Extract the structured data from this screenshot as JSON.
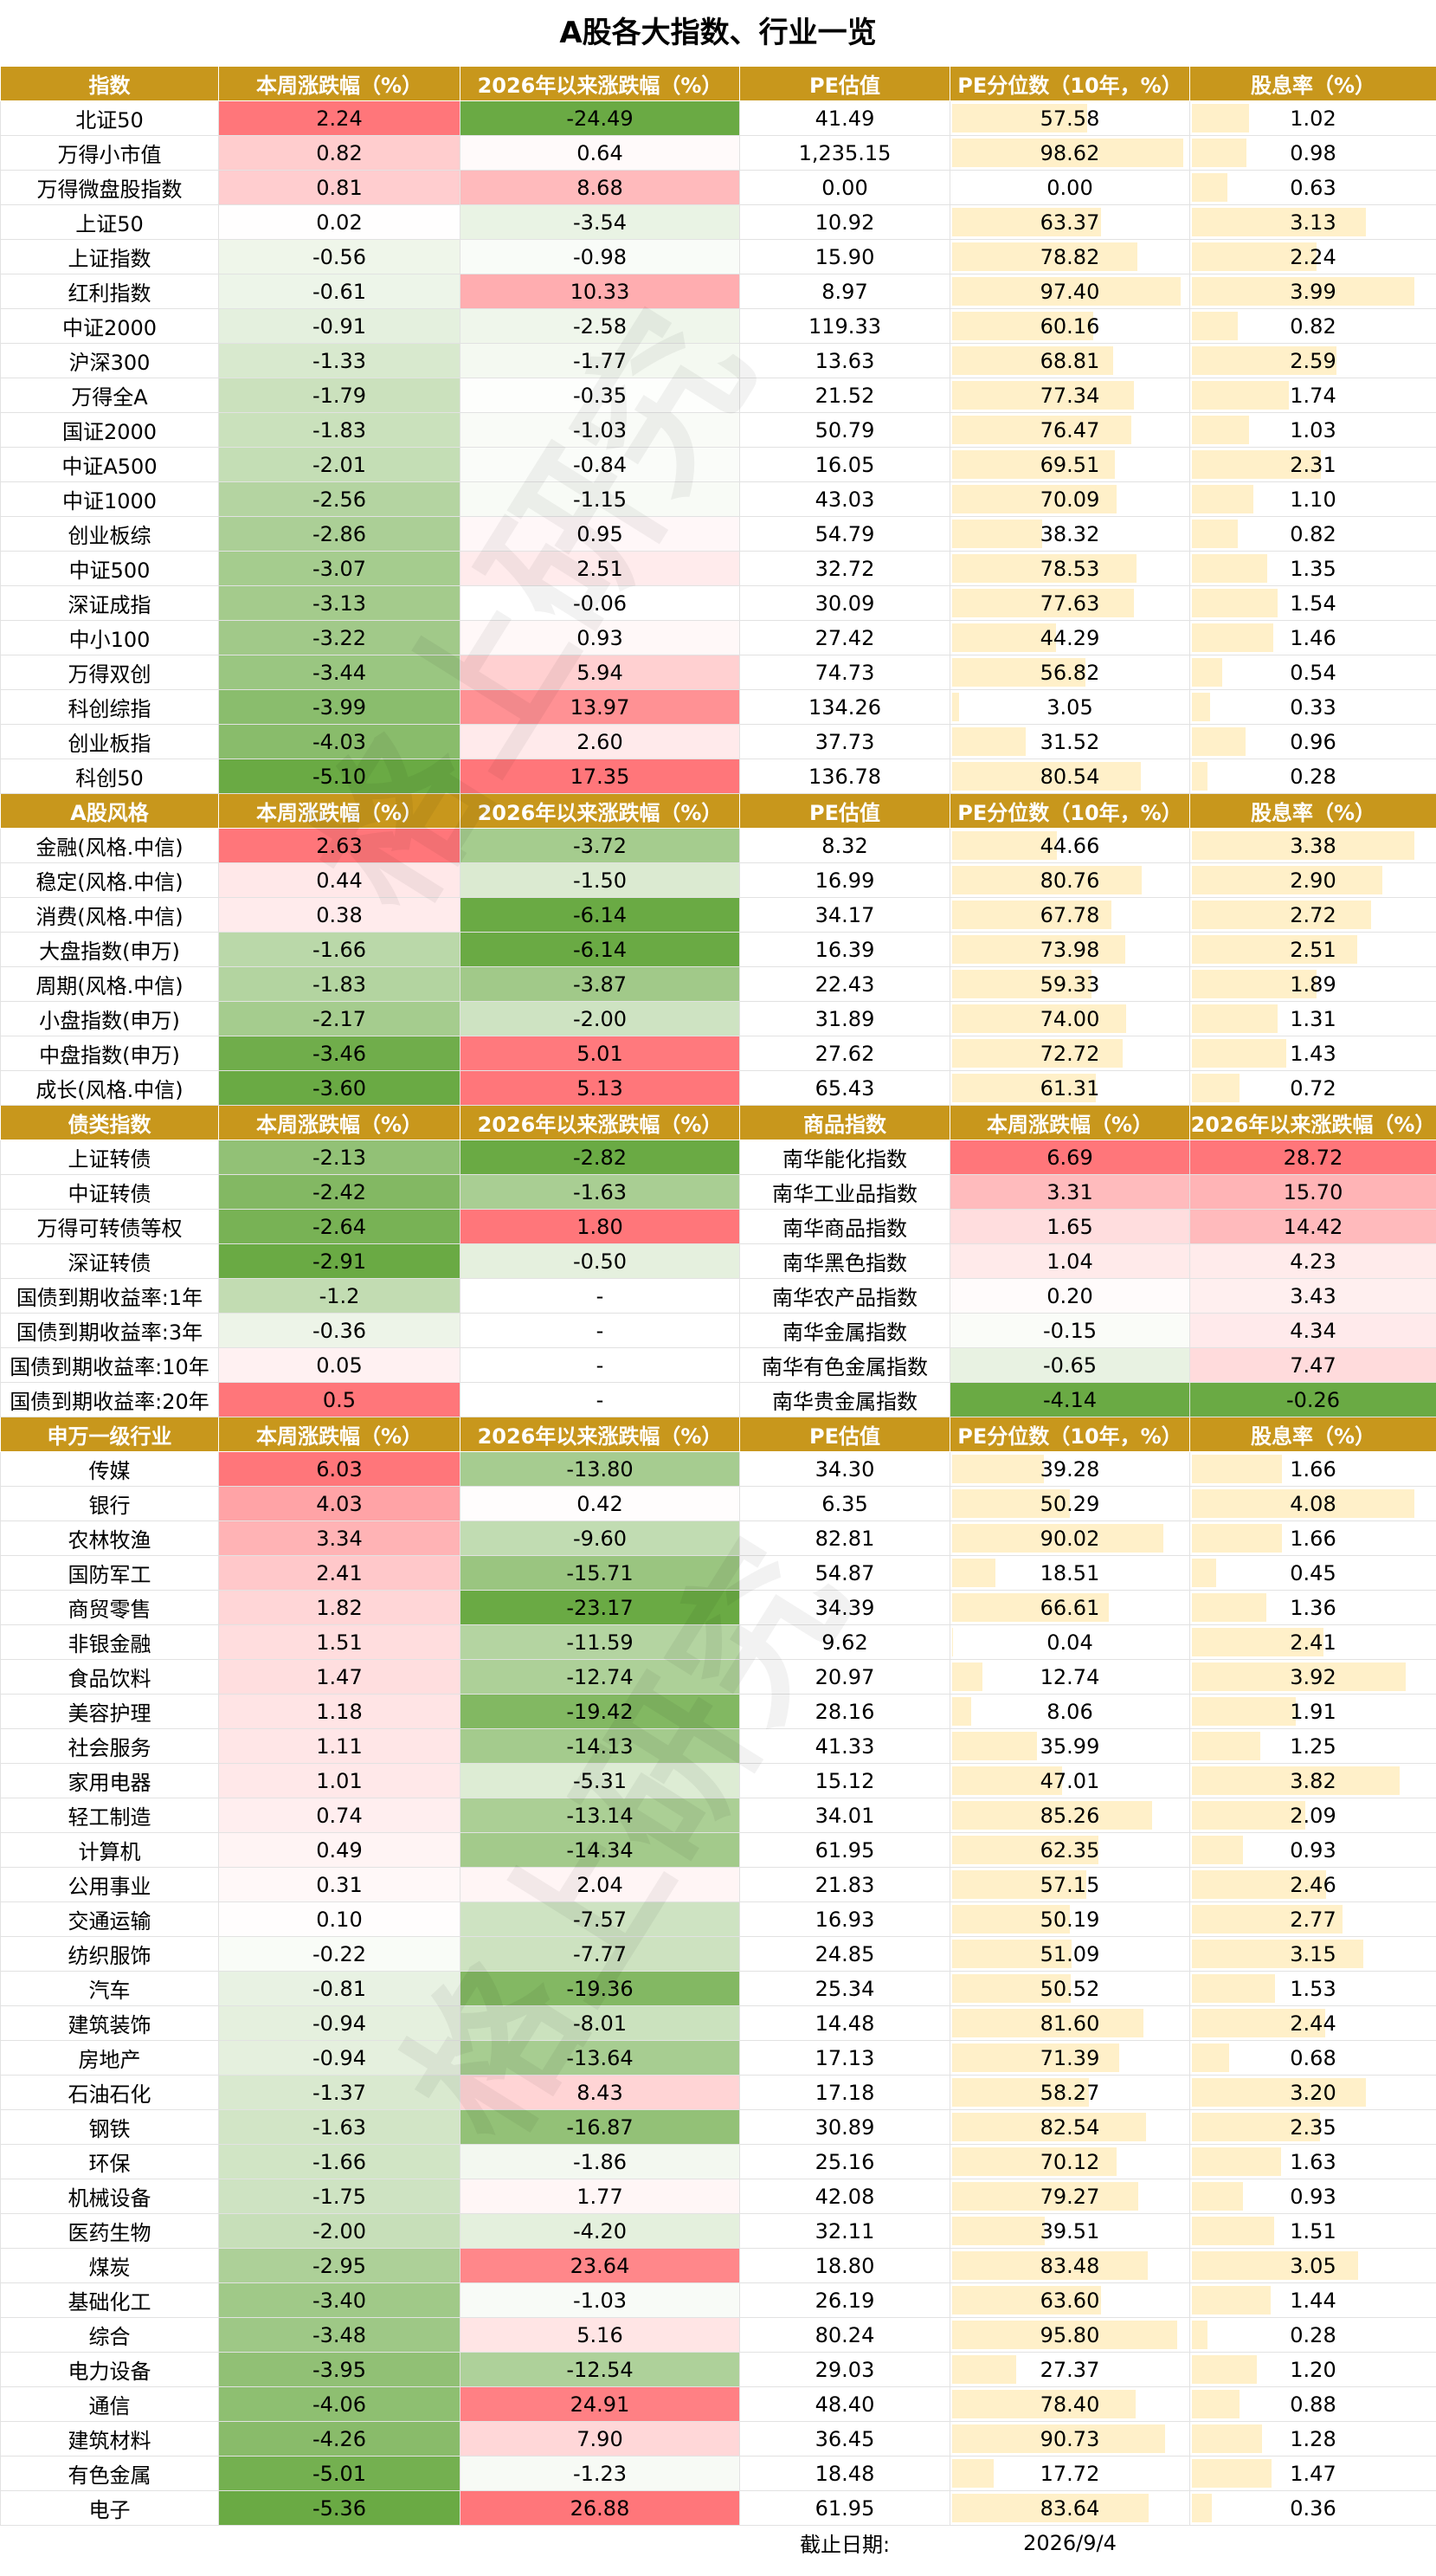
{
  "title": "A股各大指数、行业一览",
  "watermark": "格上研究",
  "sections": [
    {
      "header": [
        "指数",
        "本周涨跌幅（%）",
        "2026年以来涨跌幅（%）",
        "PE估值",
        "PE分位数（10年，%）",
        "股息率（%）"
      ],
      "rows": [
        [
          "北证50",
          "2.24",
          "-24.49",
          "41.49",
          "57.58",
          "1.02"
        ],
        [
          "万得小市值",
          "0.82",
          "0.64",
          "1,235.15",
          "98.62",
          "0.98"
        ],
        [
          "万得微盘股指数",
          "0.81",
          "8.68",
          "0.00",
          "0.00",
          "0.63"
        ],
        [
          "上证50",
          "0.02",
          "-3.54",
          "10.92",
          "63.37",
          "3.13"
        ],
        [
          "上证指数",
          "-0.56",
          "-0.98",
          "15.90",
          "78.82",
          "2.24"
        ],
        [
          "红利指数",
          "-0.61",
          "10.33",
          "8.97",
          "97.40",
          "3.99"
        ],
        [
          "中证2000",
          "-0.91",
          "-2.58",
          "119.33",
          "60.16",
          "0.82"
        ],
        [
          "沪深300",
          "-1.33",
          "-1.77",
          "13.63",
          "68.81",
          "2.59"
        ],
        [
          "万得全A",
          "-1.79",
          "-0.35",
          "21.52",
          "77.34",
          "1.74"
        ],
        [
          "国证2000",
          "-1.83",
          "-1.03",
          "50.79",
          "76.47",
          "1.03"
        ],
        [
          "中证A500",
          "-2.01",
          "-0.84",
          "16.05",
          "69.51",
          "2.31"
        ],
        [
          "中证1000",
          "-2.56",
          "-1.15",
          "43.03",
          "70.09",
          "1.10"
        ],
        [
          "创业板综",
          "-2.86",
          "0.95",
          "54.79",
          "38.32",
          "0.82"
        ],
        [
          "中证500",
          "-3.07",
          "2.51",
          "32.72",
          "78.53",
          "1.35"
        ],
        [
          "深证成指",
          "-3.13",
          "-0.06",
          "30.09",
          "77.63",
          "1.54"
        ],
        [
          "中小100",
          "-3.22",
          "0.93",
          "27.42",
          "44.29",
          "1.46"
        ],
        [
          "万得双创",
          "-3.44",
          "5.94",
          "74.73",
          "56.82",
          "0.54"
        ],
        [
          "科创综指",
          "-3.99",
          "13.97",
          "134.26",
          "3.05",
          "0.33"
        ],
        [
          "创业板指",
          "-4.03",
          "2.60",
          "37.73",
          "31.52",
          "0.96"
        ],
        [
          "科创50",
          "-5.10",
          "17.35",
          "136.78",
          "80.54",
          "0.28"
        ]
      ]
    },
    {
      "header": [
        "A股风格",
        "本周涨跌幅（%）",
        "2026年以来涨跌幅（%）",
        "PE估值",
        "PE分位数（10年，%）",
        "股息率（%）"
      ],
      "rows": [
        [
          "金融(风格.中信)",
          "2.63",
          "-3.72",
          "8.32",
          "44.66",
          "3.38"
        ],
        [
          "稳定(风格.中信)",
          "0.44",
          "-1.50",
          "16.99",
          "80.76",
          "2.90"
        ],
        [
          "消费(风格.中信)",
          "0.38",
          "-6.14",
          "34.17",
          "67.78",
          "2.72"
        ],
        [
          "大盘指数(申万)",
          "-1.66",
          "-6.14",
          "16.39",
          "73.98",
          "2.51"
        ],
        [
          "周期(风格.中信)",
          "-1.83",
          "-3.87",
          "22.43",
          "59.33",
          "1.89"
        ],
        [
          "小盘指数(申万)",
          "-2.17",
          "-2.00",
          "31.89",
          "74.00",
          "1.31"
        ],
        [
          "中盘指数(申万)",
          "-3.46",
          "5.01",
          "27.62",
          "72.72",
          "1.43"
        ],
        [
          "成长(风格.中信)",
          "-3.60",
          "5.13",
          "65.43",
          "61.31",
          "0.72"
        ]
      ]
    },
    {
      "header": [
        "债类指数",
        "本周涨跌幅（%）",
        "2026年以来涨跌幅（%）",
        "商品指数",
        "本周涨跌幅（%）",
        "2026年以来涨跌幅（%）"
      ],
      "rows": [
        [
          "上证转债",
          "-2.13",
          "-2.82",
          "南华能化指数",
          "6.69",
          "28.72"
        ],
        [
          "中证转债",
          "-2.42",
          "-1.63",
          "南华工业品指数",
          "3.31",
          "15.70"
        ],
        [
          "万得可转债等权",
          "-2.64",
          "1.80",
          "南华商品指数",
          "1.65",
          "14.42"
        ],
        [
          "深证转债",
          "-2.91",
          "-0.50",
          "南华黑色指数",
          "1.04",
          "4.23"
        ],
        [
          "国债到期收益率:1年",
          "-1.2",
          "-",
          "南华农产品指数",
          "0.20",
          "3.43"
        ],
        [
          "国债到期收益率:3年",
          "-0.36",
          "-",
          "南华金属指数",
          "-0.15",
          "4.34"
        ],
        [
          "国债到期收益率:10年",
          "0.05",
          "-",
          "南华有色金属指数",
          "-0.65",
          "7.47"
        ],
        [
          "国债到期收益率:20年",
          "0.5",
          "-",
          "南华贵金属指数",
          "-4.14",
          "-0.26"
        ]
      ]
    },
    {
      "header": [
        "申万一级行业",
        "本周涨跌幅（%）",
        "2026年以来涨跌幅（%）",
        "PE估值",
        "PE分位数（10年，%）",
        "股息率（%）"
      ],
      "rows": [
        [
          "传媒",
          "6.03",
          "-13.80",
          "34.30",
          "39.28",
          "1.66"
        ],
        [
          "银行",
          "4.03",
          "0.42",
          "6.35",
          "50.29",
          "4.08"
        ],
        [
          "农林牧渔",
          "3.34",
          "-9.60",
          "82.81",
          "90.02",
          "1.66"
        ],
        [
          "国防军工",
          "2.41",
          "-15.71",
          "54.87",
          "18.51",
          "0.45"
        ],
        [
          "商贸零售",
          "1.82",
          "-23.17",
          "34.39",
          "66.61",
          "1.36"
        ],
        [
          "非银金融",
          "1.51",
          "-11.59",
          "9.62",
          "0.04",
          "2.41"
        ],
        [
          "食品饮料",
          "1.47",
          "-12.74",
          "20.97",
          "12.74",
          "3.92"
        ],
        [
          "美容护理",
          "1.18",
          "-19.42",
          "28.16",
          "8.06",
          "1.91"
        ],
        [
          "社会服务",
          "1.11",
          "-14.13",
          "41.33",
          "35.99",
          "1.25"
        ],
        [
          "家用电器",
          "1.01",
          "-5.31",
          "15.12",
          "47.01",
          "3.82"
        ],
        [
          "轻工制造",
          "0.74",
          "-13.14",
          "34.01",
          "85.26",
          "2.09"
        ],
        [
          "计算机",
          "0.49",
          "-14.34",
          "61.95",
          "62.35",
          "0.93"
        ],
        [
          "公用事业",
          "0.31",
          "2.04",
          "21.83",
          "57.15",
          "2.46"
        ],
        [
          "交通运输",
          "0.10",
          "-7.57",
          "16.93",
          "50.19",
          "2.77"
        ],
        [
          "纺织服饰",
          "-0.22",
          "-7.77",
          "24.85",
          "51.09",
          "3.15"
        ],
        [
          "汽车",
          "-0.81",
          "-19.36",
          "25.34",
          "50.52",
          "1.53"
        ],
        [
          "建筑装饰",
          "-0.94",
          "-8.01",
          "14.48",
          "81.60",
          "2.44"
        ],
        [
          "房地产",
          "-0.94",
          "-13.64",
          "17.13",
          "71.39",
          "0.68"
        ],
        [
          "石油石化",
          "-1.37",
          "8.43",
          "17.18",
          "58.27",
          "3.20"
        ],
        [
          "钢铁",
          "-1.63",
          "-16.87",
          "30.89",
          "82.54",
          "2.35"
        ],
        [
          "环保",
          "-1.66",
          "-1.86",
          "25.16",
          "70.12",
          "1.63"
        ],
        [
          "机械设备",
          "-1.75",
          "1.77",
          "42.08",
          "79.27",
          "0.93"
        ],
        [
          "医药生物",
          "-2.00",
          "-4.20",
          "32.11",
          "39.51",
          "1.51"
        ],
        [
          "煤炭",
          "-2.95",
          "23.64",
          "18.80",
          "83.48",
          "3.05"
        ],
        [
          "基础化工",
          "-3.40",
          "-1.03",
          "26.19",
          "63.60",
          "1.44"
        ],
        [
          "综合",
          "-3.48",
          "5.16",
          "80.24",
          "95.80",
          "0.28"
        ],
        [
          "电力设备",
          "-3.95",
          "-12.54",
          "29.03",
          "27.37",
          "1.20"
        ],
        [
          "通信",
          "-4.06",
          "24.91",
          "48.40",
          "78.40",
          "0.88"
        ],
        [
          "建筑材料",
          "-4.26",
          "7.90",
          "36.45",
          "90.73",
          "1.28"
        ],
        [
          "有色金属",
          "-5.01",
          "-1.23",
          "18.48",
          "17.72",
          "1.47"
        ],
        [
          "电子",
          "-5.36",
          "26.88",
          "61.95",
          "83.64",
          "0.36"
        ]
      ]
    }
  ],
  "footer": {
    "label": "截止日期:",
    "date": "2026/9/4"
  }
}
